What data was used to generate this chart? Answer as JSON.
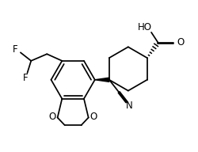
{
  "bg_color": "#ffffff",
  "line_color": "#000000",
  "figsize": [
    2.51,
    1.92
  ],
  "dpi": 100,
  "xlim": [
    0,
    5.2
  ],
  "ylim": [
    0.2,
    4.2
  ]
}
